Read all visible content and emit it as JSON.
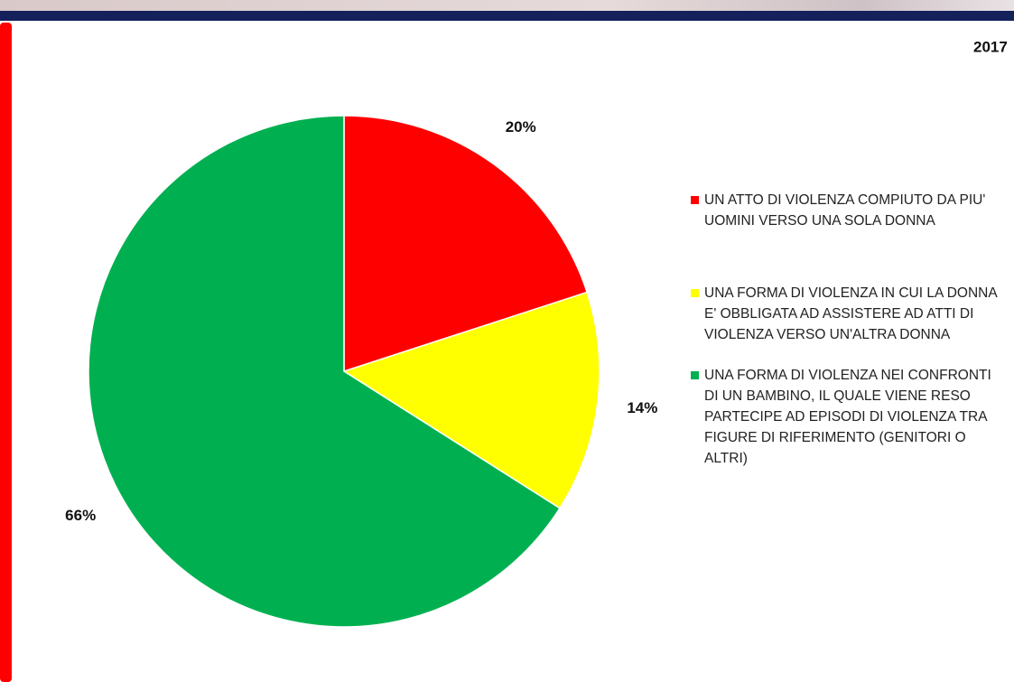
{
  "chart_data": {
    "type": "pie",
    "title": "2017",
    "categories": [
      "UN ATTO DI VIOLENZA COMPIUTO DA PIU' UOMINI VERSO UNA SOLA DONNA",
      "UNA FORMA DI VIOLENZA IN CUI LA DONNA E' OBBLIGATA AD ASSISTERE AD ATTI DI VIOLENZA VERSO UN'ALTRA DONNA",
      "UNA FORMA DI VIOLENZA NEI CONFRONTI DI UN BAMBINO, IL QUALE VIENE RESO PARTECIPE AD EPISODI DI VIOLENZA TRA FIGURE DI RIFERIMENTO (GENITORI O ALTRI)"
    ],
    "values": [
      20,
      14,
      66
    ],
    "value_labels": [
      "20%",
      "14%",
      "66%"
    ],
    "colors": [
      "#ff0000",
      "#ffff00",
      "#00b050"
    ]
  }
}
